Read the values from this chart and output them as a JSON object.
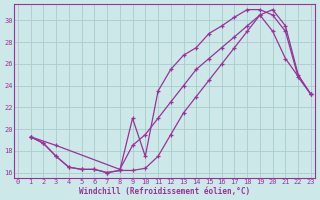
{
  "xlabel": "Windchill (Refroidissement éolien,°C)",
  "bg_color": "#cce8e8",
  "grid_color": "#aacccc",
  "line_color": "#993399",
  "xlim_min": -0.3,
  "xlim_max": 23.3,
  "ylim_min": 15.5,
  "ylim_max": 31.5,
  "yticks": [
    16,
    18,
    20,
    22,
    24,
    26,
    28,
    30
  ],
  "xticks": [
    0,
    1,
    2,
    3,
    4,
    5,
    6,
    7,
    8,
    9,
    10,
    11,
    12,
    13,
    14,
    15,
    16,
    17,
    18,
    19,
    20,
    21,
    22,
    23
  ],
  "line1_x": [
    1,
    2,
    3,
    4,
    5,
    6,
    7,
    8,
    9,
    10,
    11,
    12,
    13,
    14,
    15,
    16,
    17,
    18,
    19,
    20,
    21,
    22,
    23
  ],
  "line1_y": [
    19.3,
    18.7,
    17.5,
    16.5,
    16.3,
    16.3,
    16.0,
    16.2,
    16.2,
    16.4,
    17.5,
    19.5,
    21.5,
    23.0,
    24.5,
    26.0,
    27.5,
    29.0,
    30.5,
    31.0,
    29.5,
    25.0,
    23.2
  ],
  "line2_x": [
    1,
    2,
    3,
    4,
    5,
    6,
    7,
    8,
    9,
    10,
    11,
    12,
    13,
    14,
    15,
    16,
    17,
    18,
    19,
    20,
    21,
    22,
    23
  ],
  "line2_y": [
    19.3,
    18.7,
    17.5,
    16.5,
    16.3,
    16.3,
    16.0,
    16.2,
    21.0,
    17.5,
    23.5,
    25.5,
    26.8,
    27.5,
    28.8,
    29.5,
    30.3,
    31.0,
    31.0,
    30.5,
    29.0,
    24.8,
    23.2
  ],
  "line3_x": [
    1,
    3,
    8,
    9,
    10,
    11,
    12,
    13,
    14,
    15,
    16,
    17,
    18,
    19,
    20,
    21,
    23
  ],
  "line3_y": [
    19.3,
    18.5,
    16.3,
    18.5,
    19.5,
    21.0,
    22.5,
    24.0,
    25.5,
    26.5,
    27.5,
    28.5,
    29.5,
    30.5,
    29.0,
    26.5,
    23.2
  ]
}
